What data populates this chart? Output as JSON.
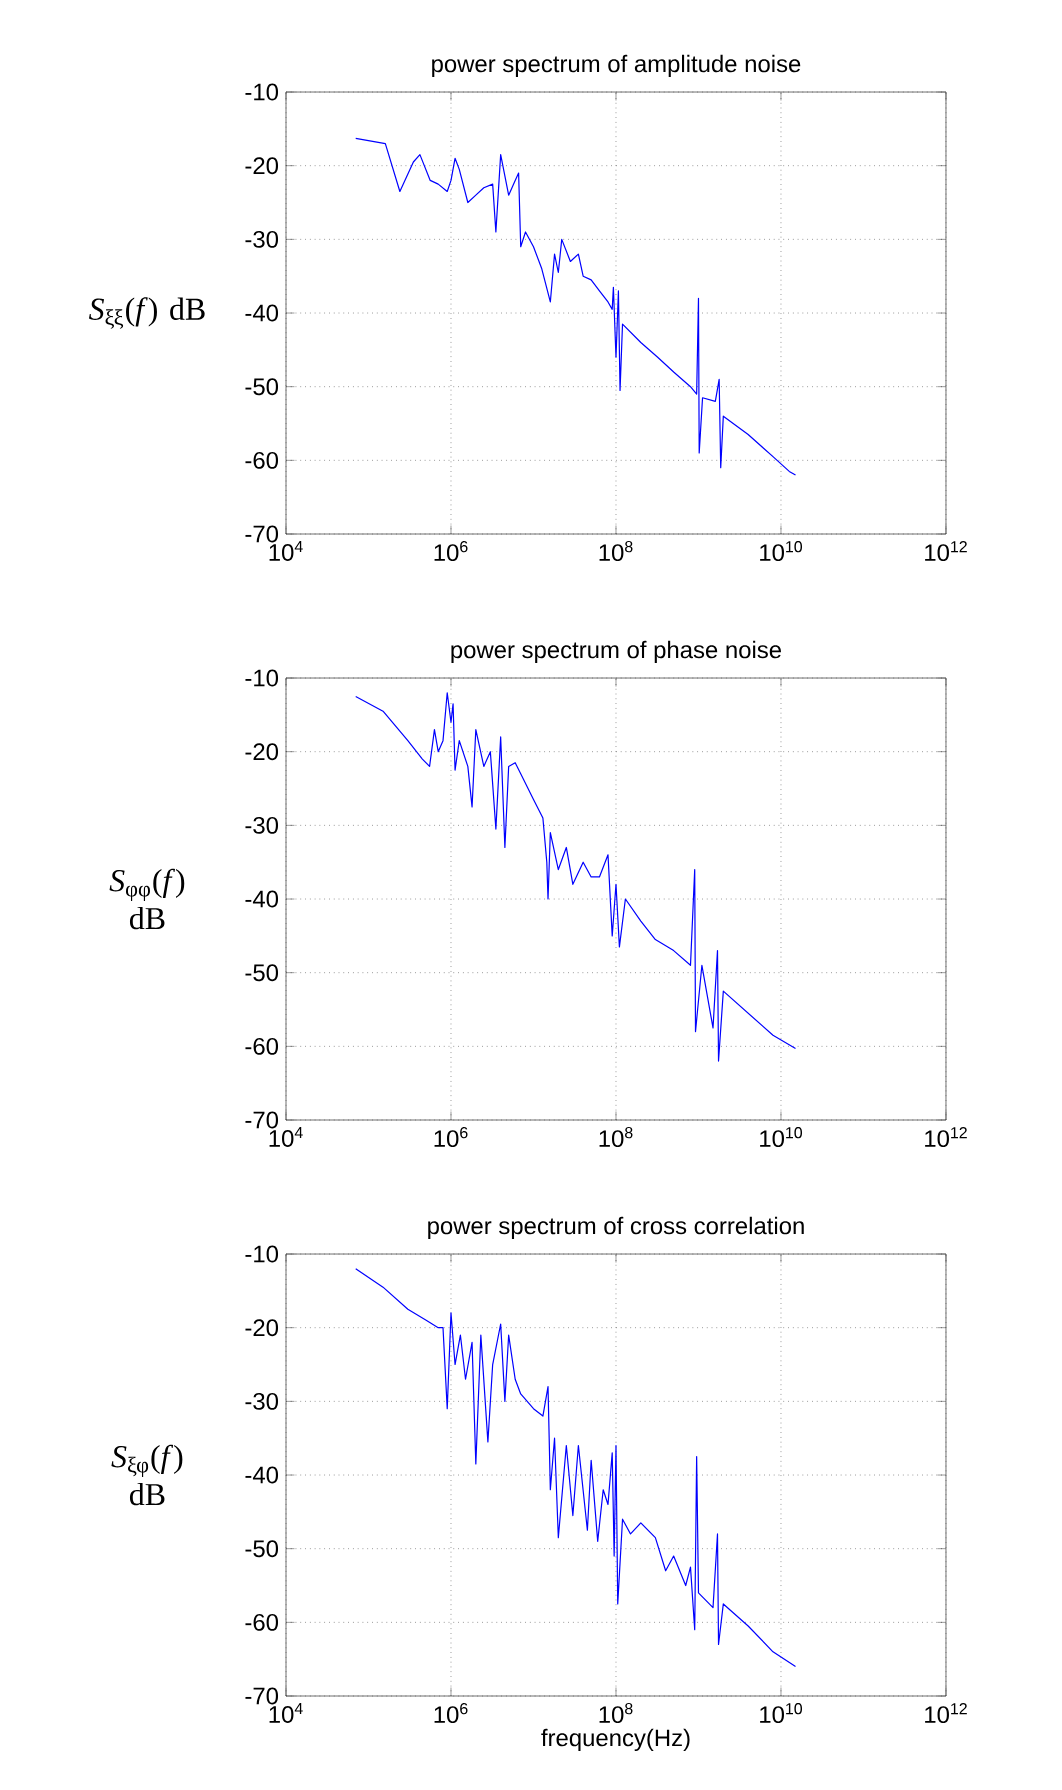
{
  "chart_data": [
    {
      "type": "line",
      "title": "power spectrum of amplitude noise",
      "ylabel": "*S*$_{ξξ}$(*f*) dB",
      "log": "x",
      "grid": true,
      "xlim": [
        10000,
        1000000000000
      ],
      "ylim": [
        -70,
        -10
      ],
      "xticks": [
        {
          "value": 10000,
          "label": "10$^{4}$"
        },
        {
          "value": 1000000,
          "label": "10$^{6}$"
        },
        {
          "value": 100000000,
          "label": "10$^{8}$"
        },
        {
          "value": 10000000000,
          "label": "10$^{10}$"
        },
        {
          "value": 1000000000000,
          "label": "10$^{12}$"
        }
      ],
      "yticks": [
        -70,
        -60,
        -50,
        -40,
        -30,
        -20,
        -10
      ],
      "x": [
        70000.0,
        160000.0,
        240000.0,
        350000.0,
        420000.0,
        560000.0,
        700000.0,
        900000.0,
        1000000.0,
        1120000.0,
        1260000.0,
        1600000.0,
        2000000.0,
        2500000.0,
        3200000.0,
        3500000.0,
        4000000.0,
        5000000.0,
        6000000.0,
        6600000.0,
        7000000.0,
        8000000.0,
        10000000.0,
        12600000.0,
        16000000.0,
        18000000.0,
        20000000.0,
        22000000.0,
        28000000.0,
        35000000.0,
        40000000.0,
        50000000.0,
        63000000.0,
        80000000.0,
        90000000.0,
        93000000.0,
        100000000.0,
        107000000.0,
        112000000.0,
        120000000.0,
        200000000.0,
        320000000.0,
        500000000.0,
        800000000.0,
        950000000.0,
        1000000000.0,
        1020000000.0,
        1120000000.0,
        1600000000.0,
        1780000000.0,
        1860000000.0,
        2000000000.0,
        4000000000.0,
        8000000000.0,
        12600000000.0,
        15000000000.0
      ],
      "series": [
        {
          "color": "#0000ff",
          "values": [
            -16.3,
            -17,
            -23.5,
            -19.5,
            -18.5,
            -22,
            -22.5,
            -23.5,
            -22,
            -19,
            -20.5,
            -25,
            -24,
            -23,
            -22.5,
            -29,
            -18.5,
            -24,
            -22,
            -21,
            -31,
            -29,
            -31,
            -34,
            -38.5,
            -32,
            -34.5,
            -30,
            -33,
            -32,
            -35,
            -35.5,
            -37,
            -38.5,
            -39.5,
            -36.5,
            -46,
            -37,
            -50.5,
            -41.5,
            -44,
            -46,
            -48,
            -50,
            -51,
            -38,
            -59,
            -51.5,
            -52,
            -49,
            -61,
            -54,
            -56.5,
            -59.5,
            -61.5,
            -62
          ]
        }
      ]
    },
    {
      "type": "line",
      "title": "power spectrum of phase noise",
      "ylabel": "*S*$_{φφ}$(*f*) dB",
      "log": "x",
      "grid": true,
      "xlim": [
        10000,
        1000000000000
      ],
      "ylim": [
        -70,
        -10
      ],
      "xticks": [
        {
          "value": 10000,
          "label": "10$^{4}$"
        },
        {
          "value": 1000000,
          "label": "10$^{6}$"
        },
        {
          "value": 100000000,
          "label": "10$^{8}$"
        },
        {
          "value": 10000000000,
          "label": "10$^{10}$"
        },
        {
          "value": 1000000000000,
          "label": "10$^{12}$"
        }
      ],
      "yticks": [
        -70,
        -60,
        -50,
        -40,
        -30,
        -20,
        -10
      ],
      "x": [
        70000.0,
        150000.0,
        300000.0,
        450000.0,
        550000.0,
        630000.0,
        700000.0,
        800000.0,
        900000.0,
        1000000.0,
        1060000.0,
        1120000.0,
        1260000.0,
        1600000.0,
        1800000.0,
        2000000.0,
        2500000.0,
        3000000.0,
        3500000.0,
        4000000.0,
        4500000.0,
        5000000.0,
        6000000.0,
        7000000.0,
        10000000.0,
        13000000.0,
        14500000.0,
        15000000.0,
        16000000.0,
        20000000.0,
        25000000.0,
        30000000.0,
        40000000.0,
        50000000.0,
        63000000.0,
        80000000.0,
        90000000.0,
        100000000.0,
        110000000.0,
        130000000.0,
        200000000.0,
        300000000.0,
        500000000.0,
        800000000.0,
        900000000.0,
        920000000.0,
        1100000000.0,
        1500000000.0,
        1700000000.0,
        1750000000.0,
        2000000000.0,
        4000000000.0,
        8000000000.0,
        15000000000.0
      ],
      "series": [
        {
          "color": "#0000ff",
          "values": [
            -12.5,
            -14.5,
            -18.5,
            -21,
            -22,
            -17,
            -20,
            -18.5,
            -12,
            -16,
            -13.5,
            -22.5,
            -18.5,
            -22,
            -27.5,
            -17,
            -22,
            -20,
            -30.5,
            -18,
            -33,
            -22,
            -21.5,
            -23,
            -26.5,
            -29,
            -35,
            -40,
            -31,
            -36,
            -33,
            -38,
            -35,
            -37,
            -37,
            -34,
            -45,
            -38,
            -46.5,
            -40,
            -43,
            -45.5,
            -47,
            -49,
            -36,
            -58,
            -49,
            -57.5,
            -47,
            -62,
            -52.5,
            -55.5,
            -58.5,
            -60.3
          ]
        }
      ]
    },
    {
      "type": "line",
      "title": "power spectrum of cross correlation",
      "xlabel": "frequency(Hz)",
      "ylabel": "*S*$_{ξφ}$(*f*) dB",
      "log": "x",
      "grid": true,
      "xlim": [
        10000,
        1000000000000
      ],
      "ylim": [
        -70,
        -10
      ],
      "xticks": [
        {
          "value": 10000,
          "label": "10$^{4}$"
        },
        {
          "value": 1000000,
          "label": "10$^{6}$"
        },
        {
          "value": 100000000,
          "label": "10$^{8}$"
        },
        {
          "value": 10000000000,
          "label": "10$^{10}$"
        },
        {
          "value": 1000000000000,
          "label": "10$^{12}$"
        }
      ],
      "yticks": [
        -70,
        -60,
        -50,
        -40,
        -30,
        -20,
        -10
      ],
      "x": [
        70000.0,
        150000.0,
        300000.0,
        500000.0,
        700000.0,
        800000.0,
        900000.0,
        1000000.0,
        1120000.0,
        1300000.0,
        1500000.0,
        1800000.0,
        2000000.0,
        2300000.0,
        2800000.0,
        3200000.0,
        4000000.0,
        4500000.0,
        5000000.0,
        6000000.0,
        7000000.0,
        10000000.0,
        13000000.0,
        15000000.0,
        16000000.0,
        18000000.0,
        20000000.0,
        25000000.0,
        30000000.0,
        35000000.0,
        45000000.0,
        50000000.0,
        60000000.0,
        70000000.0,
        80000000.0,
        90000000.0,
        95000000.0,
        100000000.0,
        105000000.0,
        120000000.0,
        150000000.0,
        200000000.0,
        300000000.0,
        400000000.0,
        500000000.0,
        700000000.0,
        800000000.0,
        900000000.0,
        950000000.0,
        1000000000.0,
        1500000000.0,
        1700000000.0,
        1750000000.0,
        2000000000.0,
        4000000000.0,
        8000000000.0,
        15000000000.0
      ],
      "series": [
        {
          "color": "#0000ff",
          "values": [
            -12,
            -14.5,
            -17.5,
            -19,
            -20,
            -20,
            -31,
            -18,
            -25,
            -21,
            -27,
            -22,
            -38.5,
            -21,
            -35.5,
            -25,
            -19.5,
            -30,
            -21,
            -27,
            -29,
            -31,
            -32,
            -28,
            -42,
            -35,
            -48.5,
            -36,
            -45.5,
            -36,
            -47.5,
            -38,
            -49,
            -42,
            -44,
            -37,
            -51,
            -36,
            -57.5,
            -46,
            -48,
            -46.5,
            -48.5,
            -53,
            -51,
            -55,
            -52.5,
            -61,
            -37.5,
            -56,
            -58,
            -48,
            -63,
            -57.5,
            -60.5,
            -64,
            -66
          ]
        }
      ]
    }
  ]
}
